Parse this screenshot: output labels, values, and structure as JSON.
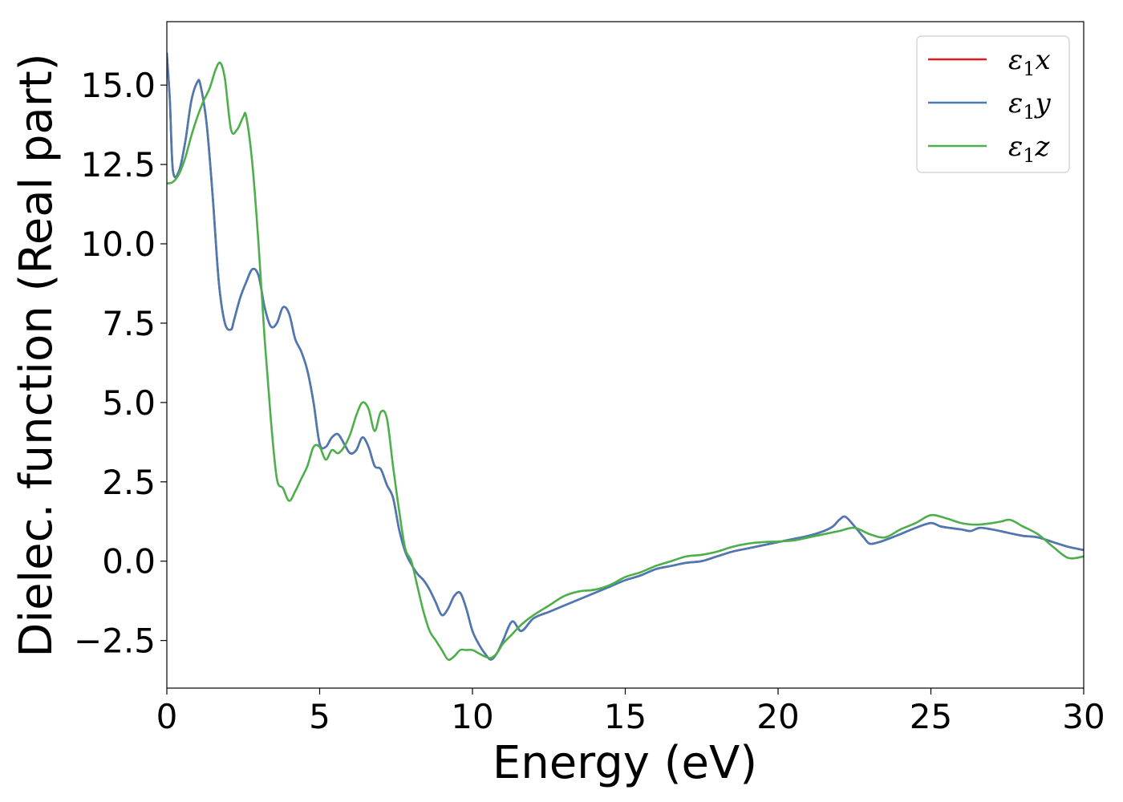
{
  "chart_data": {
    "type": "line",
    "xlabel": "Energy (eV)",
    "ylabel": "Dielec. function (Real part)",
    "xlim": [
      0,
      30
    ],
    "ylim": [
      -4.0,
      17.0
    ],
    "xticks": [
      0,
      5,
      10,
      15,
      20,
      25,
      30
    ],
    "xtick_labels": [
      "0",
      "5",
      "10",
      "15",
      "20",
      "25",
      "30"
    ],
    "yticks": [
      -2.5,
      0.0,
      2.5,
      5.0,
      7.5,
      10.0,
      12.5,
      15.0
    ],
    "ytick_labels": [
      "−2.5",
      "0.0",
      "2.5",
      "5.0",
      "7.5",
      "10.0",
      "12.5",
      "15.0"
    ],
    "grid": false,
    "legend_position": "top-right",
    "series": [
      {
        "name": "ε₁x",
        "legend_base": "ε",
        "legend_sub": "1",
        "legend_var": "x",
        "color": "#e41a1c",
        "x": [
          0,
          0.1,
          0.2,
          0.4,
          0.6,
          0.8,
          1.0,
          1.1,
          1.3,
          1.5,
          1.7,
          1.9,
          2.1,
          2.2,
          2.4,
          2.6,
          2.8,
          3.0,
          3.2,
          3.4,
          3.6,
          3.8,
          4.0,
          4.2,
          4.4,
          4.6,
          4.8,
          5.0,
          5.2,
          5.4,
          5.6,
          5.8,
          6.0,
          6.2,
          6.4,
          6.6,
          6.8,
          7.0,
          7.2,
          7.4,
          7.6,
          7.8,
          8.0,
          8.2,
          8.4,
          8.6,
          8.8,
          9.0,
          9.2,
          9.4,
          9.6,
          9.8,
          10.0,
          10.2,
          10.4,
          10.6,
          10.8,
          11.0,
          11.3,
          11.6,
          12.0,
          12.5,
          13.0,
          13.5,
          14.0,
          14.5,
          15.0,
          15.5,
          16.0,
          16.5,
          17.0,
          17.5,
          18.0,
          18.5,
          19.0,
          19.5,
          20.0,
          20.5,
          21.0,
          21.5,
          21.8,
          22.0,
          22.2,
          22.5,
          22.8,
          23.0,
          23.3,
          23.6,
          24.0,
          24.5,
          25.0,
          25.3,
          25.6,
          26.0,
          26.3,
          26.6,
          27.0,
          27.5,
          28.0,
          28.5,
          29.0,
          29.5,
          30.0
        ],
        "y": [
          16.0,
          14.5,
          12.3,
          12.3,
          13.2,
          14.5,
          15.1,
          15.0,
          13.8,
          11.5,
          8.8,
          7.5,
          7.3,
          7.6,
          8.3,
          8.8,
          9.2,
          9.0,
          8.0,
          7.4,
          7.5,
          8.0,
          7.8,
          7.0,
          6.6,
          6.0,
          5.0,
          3.7,
          3.6,
          3.9,
          4.0,
          3.7,
          3.4,
          3.5,
          3.9,
          3.6,
          3.0,
          2.9,
          2.4,
          2.0,
          1.0,
          0.3,
          -0.1,
          -0.4,
          -0.6,
          -0.9,
          -1.3,
          -1.7,
          -1.5,
          -1.1,
          -1.0,
          -1.5,
          -2.2,
          -2.6,
          -2.9,
          -3.1,
          -2.9,
          -2.5,
          -1.9,
          -2.2,
          -1.8,
          -1.6,
          -1.4,
          -1.2,
          -1.0,
          -0.8,
          -0.6,
          -0.45,
          -0.25,
          -0.15,
          -0.05,
          0.0,
          0.15,
          0.3,
          0.4,
          0.5,
          0.6,
          0.7,
          0.8,
          0.95,
          1.1,
          1.3,
          1.4,
          1.1,
          0.75,
          0.55,
          0.6,
          0.7,
          0.85,
          1.05,
          1.2,
          1.1,
          1.05,
          1.0,
          0.95,
          1.05,
          1.0,
          0.9,
          0.8,
          0.75,
          0.6,
          0.45,
          0.35
        ]
      },
      {
        "name": "ε₁y",
        "legend_base": "ε",
        "legend_sub": "1",
        "legend_var": "y",
        "color": "#4a7ab5",
        "x": [
          0,
          0.1,
          0.2,
          0.4,
          0.6,
          0.8,
          1.0,
          1.1,
          1.3,
          1.5,
          1.7,
          1.9,
          2.1,
          2.2,
          2.4,
          2.6,
          2.8,
          3.0,
          3.2,
          3.4,
          3.6,
          3.8,
          4.0,
          4.2,
          4.4,
          4.6,
          4.8,
          5.0,
          5.2,
          5.4,
          5.6,
          5.8,
          6.0,
          6.2,
          6.4,
          6.6,
          6.8,
          7.0,
          7.2,
          7.4,
          7.6,
          7.8,
          8.0,
          8.2,
          8.4,
          8.6,
          8.8,
          9.0,
          9.2,
          9.4,
          9.6,
          9.8,
          10.0,
          10.2,
          10.4,
          10.6,
          10.8,
          11.0,
          11.3,
          11.6,
          12.0,
          12.5,
          13.0,
          13.5,
          14.0,
          14.5,
          15.0,
          15.5,
          16.0,
          16.5,
          17.0,
          17.5,
          18.0,
          18.5,
          19.0,
          19.5,
          20.0,
          20.5,
          21.0,
          21.5,
          21.8,
          22.0,
          22.2,
          22.5,
          22.8,
          23.0,
          23.3,
          23.6,
          24.0,
          24.5,
          25.0,
          25.3,
          25.6,
          26.0,
          26.3,
          26.6,
          27.0,
          27.5,
          28.0,
          28.5,
          29.0,
          29.5,
          30.0
        ],
        "y": [
          16.0,
          14.5,
          12.3,
          12.3,
          13.2,
          14.5,
          15.1,
          15.0,
          13.8,
          11.5,
          8.8,
          7.5,
          7.3,
          7.6,
          8.3,
          8.8,
          9.2,
          9.0,
          8.0,
          7.4,
          7.5,
          8.0,
          7.8,
          7.0,
          6.6,
          6.0,
          5.0,
          3.7,
          3.6,
          3.9,
          4.0,
          3.7,
          3.4,
          3.5,
          3.9,
          3.6,
          3.0,
          2.9,
          2.4,
          2.0,
          1.0,
          0.3,
          -0.1,
          -0.4,
          -0.6,
          -0.9,
          -1.3,
          -1.7,
          -1.5,
          -1.1,
          -1.0,
          -1.5,
          -2.2,
          -2.6,
          -2.9,
          -3.1,
          -2.9,
          -2.5,
          -1.9,
          -2.2,
          -1.8,
          -1.6,
          -1.4,
          -1.2,
          -1.0,
          -0.8,
          -0.6,
          -0.45,
          -0.25,
          -0.15,
          -0.05,
          0.0,
          0.15,
          0.3,
          0.4,
          0.5,
          0.6,
          0.7,
          0.8,
          0.95,
          1.1,
          1.3,
          1.4,
          1.1,
          0.75,
          0.55,
          0.6,
          0.7,
          0.85,
          1.05,
          1.2,
          1.1,
          1.05,
          1.0,
          0.95,
          1.05,
          1.0,
          0.9,
          0.8,
          0.75,
          0.6,
          0.45,
          0.35
        ]
      },
      {
        "name": "ε₁z",
        "legend_base": "ε",
        "legend_sub": "1",
        "legend_var": "z",
        "color": "#4daf4a",
        "x": [
          0,
          0.2,
          0.4,
          0.6,
          0.8,
          1.0,
          1.2,
          1.4,
          1.6,
          1.75,
          1.9,
          2.1,
          2.3,
          2.5,
          2.6,
          2.8,
          3.0,
          3.2,
          3.4,
          3.6,
          3.8,
          4.0,
          4.2,
          4.4,
          4.6,
          4.8,
          5.0,
          5.2,
          5.4,
          5.6,
          5.8,
          6.0,
          6.2,
          6.4,
          6.6,
          6.8,
          7.0,
          7.2,
          7.4,
          7.6,
          7.8,
          8.0,
          8.2,
          8.4,
          8.6,
          8.8,
          9.0,
          9.2,
          9.4,
          9.6,
          9.8,
          10.0,
          10.2,
          10.4,
          10.6,
          10.8,
          11.0,
          11.3,
          11.6,
          12.0,
          12.5,
          13.0,
          13.5,
          14.0,
          14.5,
          15.0,
          15.5,
          16.0,
          16.5,
          17.0,
          17.5,
          18.0,
          18.5,
          19.0,
          19.5,
          20.0,
          20.5,
          21.0,
          21.5,
          22.0,
          22.5,
          23.0,
          23.5,
          24.0,
          24.5,
          25.0,
          25.5,
          26.0,
          26.5,
          27.0,
          27.3,
          27.6,
          28.0,
          28.5,
          29.0,
          29.5,
          30.0
        ],
        "y": [
          11.9,
          11.95,
          12.2,
          12.7,
          13.4,
          14.0,
          14.5,
          14.9,
          15.5,
          15.7,
          15.2,
          13.6,
          13.6,
          14.0,
          14.0,
          12.5,
          10.0,
          7.0,
          4.5,
          2.6,
          2.3,
          1.9,
          2.2,
          2.6,
          3.0,
          3.6,
          3.6,
          3.2,
          3.5,
          3.4,
          3.6,
          4.0,
          4.6,
          5.0,
          4.8,
          4.1,
          4.7,
          4.5,
          3.0,
          1.6,
          0.4,
          0.0,
          -0.8,
          -1.6,
          -2.2,
          -2.5,
          -2.8,
          -3.1,
          -3.0,
          -2.8,
          -2.8,
          -2.8,
          -2.9,
          -3.0,
          -3.05,
          -2.9,
          -2.6,
          -2.3,
          -2.0,
          -1.7,
          -1.4,
          -1.1,
          -0.95,
          -0.9,
          -0.75,
          -0.5,
          -0.35,
          -0.15,
          0.0,
          0.15,
          0.2,
          0.3,
          0.45,
          0.55,
          0.6,
          0.62,
          0.65,
          0.75,
          0.85,
          0.95,
          1.05,
          0.85,
          0.75,
          1.0,
          1.2,
          1.45,
          1.35,
          1.2,
          1.15,
          1.2,
          1.25,
          1.3,
          1.1,
          0.85,
          0.45,
          0.1,
          0.15
        ]
      }
    ]
  }
}
